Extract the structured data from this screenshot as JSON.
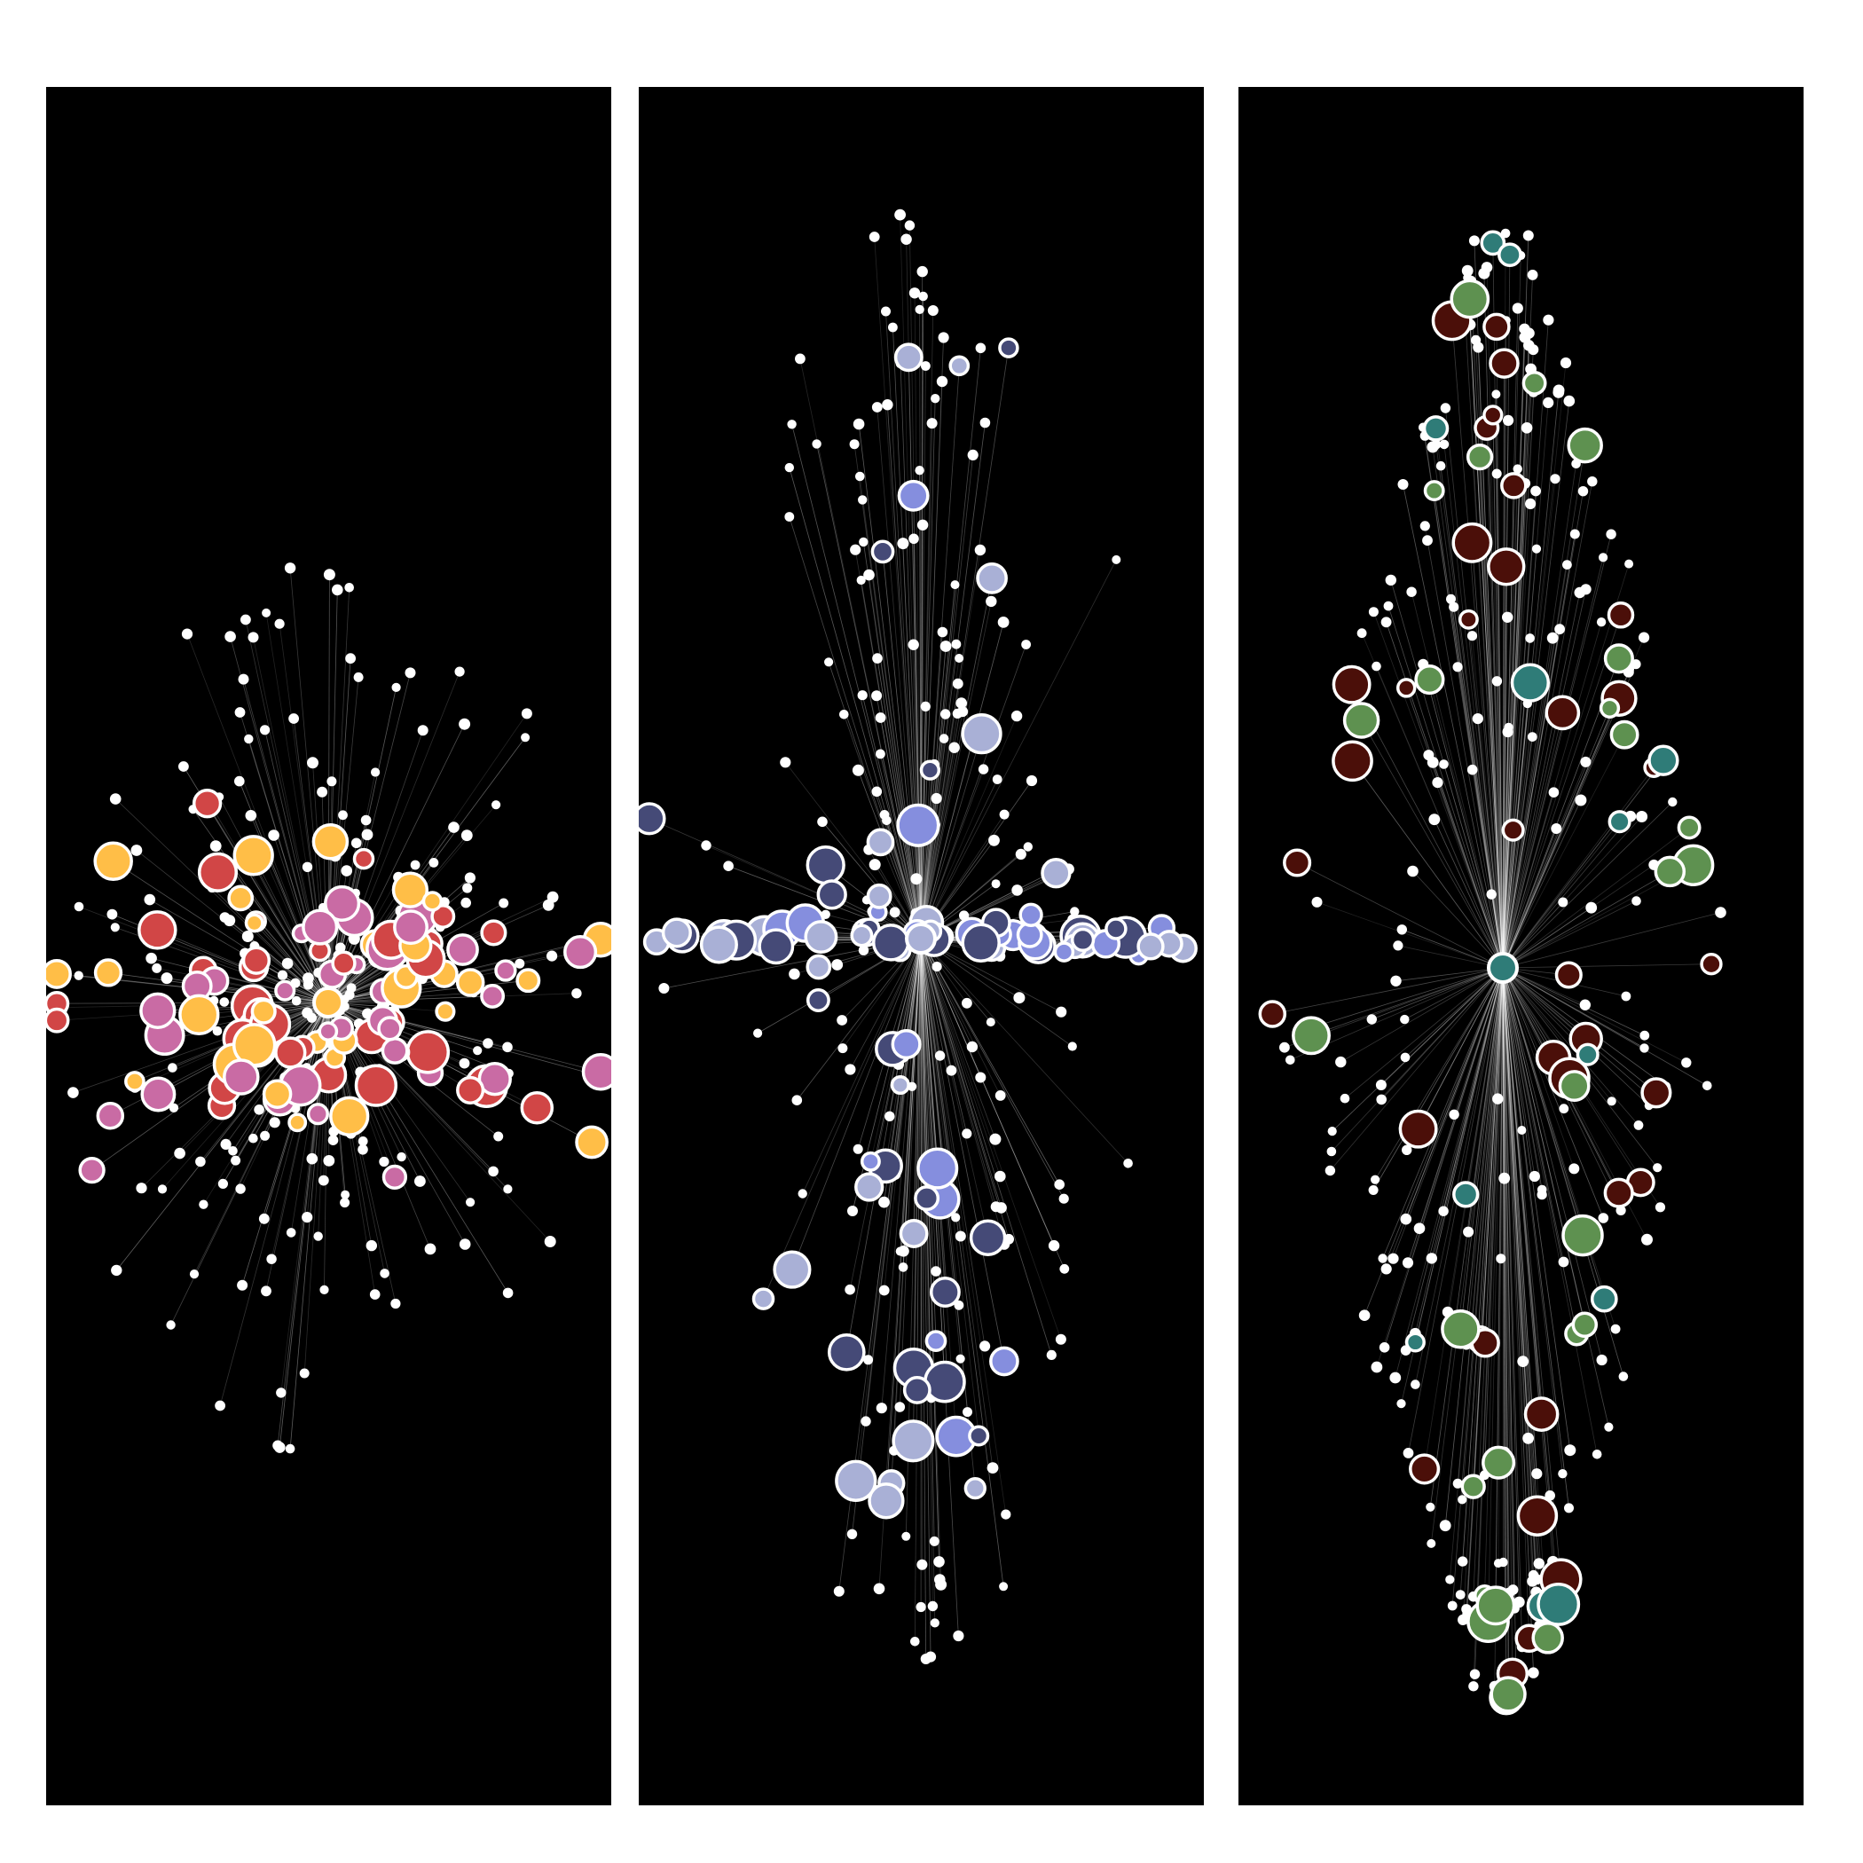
{
  "figure": {
    "background": "#000000",
    "edge_color": "#ffffff",
    "node_outline": "#ffffff"
  },
  "panels": [
    {
      "id": "panel-1",
      "layout": "radial",
      "hub_color": "#FFBE47",
      "node_colors": [
        "#D14646",
        "#C96BA4",
        "#FFBE47"
      ],
      "seed": 11,
      "small_nodes": 220,
      "colored_nodes": 110
    },
    {
      "id": "panel-2",
      "layout": "horizontal-band",
      "hub_color": "#A9B0D6",
      "node_colors": [
        "#454A77",
        "#858EDE",
        "#A9B0D6"
      ],
      "seed": 23,
      "small_nodes": 200,
      "colored_nodes": 95
    },
    {
      "id": "panel-3",
      "layout": "vertical-fan",
      "hub_color": "#2F7C78",
      "node_colors": [
        "#4B0F09",
        "#5E9150",
        "#2F7C78"
      ],
      "seed": 37,
      "small_nodes": 230,
      "colored_nodes": 75
    }
  ]
}
